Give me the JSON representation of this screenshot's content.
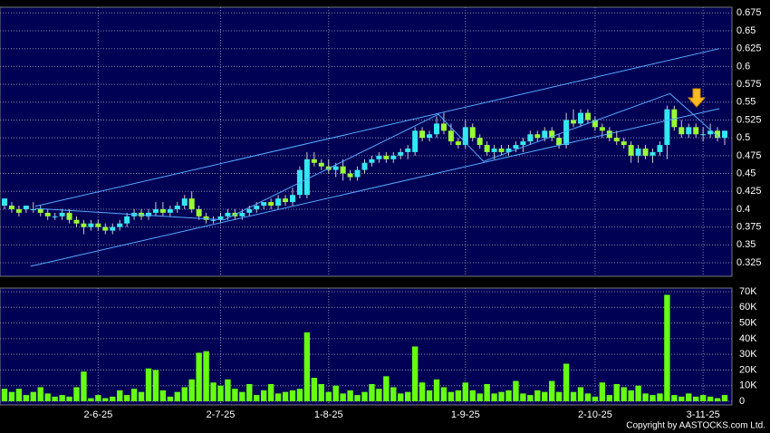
{
  "chart_data": {
    "type": "candlestick",
    "categories": [
      null,
      null,
      null,
      null,
      null,
      null,
      null,
      null,
      null,
      null,
      null,
      null,
      null,
      "2-6-25",
      null,
      null,
      null,
      null,
      null,
      null,
      null,
      null,
      null,
      null,
      null,
      null,
      null,
      null,
      null,
      null,
      "2-7-25",
      null,
      null,
      null,
      null,
      null,
      null,
      null,
      null,
      null,
      null,
      null,
      null,
      null,
      null,
      "1-8-25",
      null,
      null,
      null,
      null,
      null,
      null,
      null,
      null,
      null,
      null,
      null,
      null,
      null,
      null,
      null,
      null,
      null,
      null,
      "1-9-25",
      null,
      null,
      null,
      null,
      null,
      null,
      null,
      null,
      null,
      null,
      null,
      null,
      null,
      null,
      null,
      null,
      null,
      "2-10-25",
      null,
      null,
      null,
      null,
      null,
      null,
      null,
      null,
      null,
      null,
      null,
      null,
      null,
      null,
      "3-11-25",
      null,
      null,
      null
    ],
    "open": [
      0.405,
      0.405,
      0.4,
      0.4,
      0.4,
      0.4,
      0.395,
      0.39,
      0.39,
      0.395,
      0.385,
      0.38,
      0.375,
      0.38,
      0.375,
      0.37,
      0.375,
      0.38,
      0.39,
      0.395,
      0.39,
      0.395,
      0.4,
      0.395,
      0.4,
      0.405,
      0.415,
      0.4,
      0.39,
      0.385,
      0.385,
      0.39,
      0.395,
      0.39,
      0.395,
      0.4,
      0.405,
      0.41,
      0.405,
      0.415,
      0.41,
      0.42,
      0.42,
      0.47,
      0.465,
      0.46,
      0.455,
      0.46,
      0.45,
      0.445,
      0.455,
      0.465,
      0.47,
      0.475,
      0.47,
      0.475,
      0.48,
      0.48,
      0.51,
      0.5,
      0.505,
      0.52,
      0.51,
      0.495,
      0.49,
      0.515,
      0.5,
      0.49,
      0.48,
      0.485,
      0.48,
      0.485,
      0.49,
      0.495,
      0.505,
      0.5,
      0.51,
      0.5,
      0.49,
      0.525,
      0.52,
      0.535,
      0.525,
      0.515,
      0.51,
      0.5,
      0.495,
      0.49,
      0.475,
      0.485,
      0.475,
      0.48,
      0.49,
      0.54,
      0.515,
      0.505,
      0.515,
      0.505,
      0.505,
      0.51,
      0.5
    ],
    "high": [
      0.415,
      0.41,
      0.405,
      0.405,
      0.41,
      0.405,
      0.4,
      0.395,
      0.4,
      0.4,
      0.39,
      0.385,
      0.385,
      0.385,
      0.38,
      0.38,
      0.385,
      0.395,
      0.4,
      0.4,
      0.4,
      0.41,
      0.41,
      0.405,
      0.41,
      0.42,
      0.425,
      0.405,
      0.395,
      0.39,
      0.395,
      0.4,
      0.4,
      0.4,
      0.405,
      0.41,
      0.41,
      0.415,
      0.42,
      0.42,
      0.43,
      0.46,
      0.48,
      0.48,
      0.47,
      0.47,
      0.465,
      0.47,
      0.455,
      0.46,
      0.47,
      0.475,
      0.48,
      0.48,
      0.48,
      0.485,
      0.49,
      0.515,
      0.515,
      0.51,
      0.53,
      0.535,
      0.52,
      0.5,
      0.525,
      0.52,
      0.505,
      0.495,
      0.49,
      0.49,
      0.49,
      0.495,
      0.5,
      0.51,
      0.51,
      0.515,
      0.515,
      0.505,
      0.535,
      0.54,
      0.54,
      0.54,
      0.53,
      0.52,
      0.515,
      0.51,
      0.5,
      0.495,
      0.49,
      0.49,
      0.485,
      0.495,
      0.545,
      0.545,
      0.525,
      0.52,
      0.52,
      0.515,
      0.52,
      0.515,
      0.51
    ],
    "low": [
      0.4,
      0.395,
      0.39,
      0.395,
      0.395,
      0.39,
      0.385,
      0.385,
      0.385,
      0.38,
      0.375,
      0.365,
      0.37,
      0.37,
      0.365,
      0.365,
      0.37,
      0.375,
      0.385,
      0.385,
      0.385,
      0.39,
      0.39,
      0.39,
      0.395,
      0.4,
      0.395,
      0.385,
      0.38,
      0.38,
      0.38,
      0.385,
      0.385,
      0.385,
      0.39,
      0.395,
      0.4,
      0.4,
      0.4,
      0.405,
      0.405,
      0.415,
      0.415,
      0.46,
      0.455,
      0.45,
      0.445,
      0.44,
      0.44,
      0.44,
      0.45,
      0.46,
      0.465,
      0.465,
      0.465,
      0.47,
      0.47,
      0.475,
      0.495,
      0.495,
      0.5,
      0.505,
      0.49,
      0.485,
      0.485,
      0.495,
      0.485,
      0.475,
      0.47,
      0.475,
      0.475,
      0.48,
      0.48,
      0.49,
      0.495,
      0.495,
      0.495,
      0.485,
      0.485,
      0.515,
      0.515,
      0.52,
      0.51,
      0.5,
      0.495,
      0.49,
      0.485,
      0.465,
      0.465,
      0.47,
      0.465,
      0.475,
      0.47,
      0.51,
      0.5,
      0.5,
      0.5,
      0.495,
      0.5,
      0.495,
      0.49
    ],
    "close": [
      0.415,
      0.4,
      0.395,
      0.405,
      0.4,
      0.395,
      0.39,
      0.39,
      0.395,
      0.385,
      0.38,
      0.375,
      0.38,
      0.375,
      0.37,
      0.375,
      0.38,
      0.39,
      0.395,
      0.39,
      0.395,
      0.4,
      0.395,
      0.4,
      0.405,
      0.415,
      0.4,
      0.39,
      0.385,
      0.385,
      0.39,
      0.395,
      0.39,
      0.395,
      0.4,
      0.405,
      0.41,
      0.405,
      0.415,
      0.41,
      0.42,
      0.455,
      0.47,
      0.465,
      0.46,
      0.455,
      0.46,
      0.45,
      0.445,
      0.455,
      0.465,
      0.47,
      0.475,
      0.47,
      0.475,
      0.48,
      0.485,
      0.51,
      0.5,
      0.505,
      0.52,
      0.51,
      0.495,
      0.49,
      0.515,
      0.5,
      0.49,
      0.48,
      0.485,
      0.48,
      0.485,
      0.49,
      0.495,
      0.505,
      0.5,
      0.51,
      0.5,
      0.49,
      0.525,
      0.52,
      0.535,
      0.525,
      0.515,
      0.51,
      0.5,
      0.495,
      0.49,
      0.475,
      0.485,
      0.475,
      0.48,
      0.49,
      0.54,
      0.515,
      0.505,
      0.515,
      0.505,
      0.505,
      0.51,
      0.5,
      0.51
    ],
    "volume": [
      8000,
      6000,
      8000,
      4000,
      6000,
      9000,
      5000,
      3000,
      4000,
      3000,
      9000,
      19000,
      2000,
      4000,
      2000,
      3000,
      7000,
      4000,
      8000,
      6000,
      21000,
      20000,
      7000,
      3000,
      6000,
      9000,
      14000,
      31000,
      32000,
      12000,
      10000,
      14000,
      8000,
      6000,
      11000,
      4000,
      7000,
      11000,
      5000,
      6000,
      7000,
      8000,
      44000,
      15000,
      11000,
      6000,
      10000,
      5000,
      7000,
      4000,
      6000,
      11000,
      8000,
      16000,
      9000,
      5000,
      6000,
      35000,
      12000,
      7000,
      14000,
      9000,
      6000,
      7000,
      12000,
      7000,
      5000,
      11000,
      5000,
      6000,
      7000,
      13000,
      5000,
      4000,
      7000,
      6000,
      13000,
      6000,
      24000,
      6000,
      9000,
      5000,
      3000,
      12000,
      4000,
      11000,
      9000,
      7000,
      10000,
      5000,
      4000,
      5000,
      68000,
      4000,
      3000,
      5000,
      3000,
      4000,
      3000,
      2000,
      4000
    ],
    "up_color": "#33e8f0",
    "down_color": "#99ff33",
    "volume_color": "#66ff11",
    "trendline_color": "#55aaff",
    "ylim": [
      0.306,
      0.683
    ],
    "yticks": [
      0.325,
      0.35,
      0.375,
      0.4,
      0.425,
      0.45,
      0.475,
      0.5,
      0.525,
      0.55,
      0.575,
      0.6,
      0.625,
      0.65,
      0.675
    ],
    "vol_ylim": [
      -2300,
      72300
    ],
    "vol_yticks": [
      0,
      {
        "value": 10000,
        "label": "10K"
      },
      {
        "value": 20000,
        "label": "20K"
      },
      {
        "value": 30000,
        "label": "30K"
      },
      {
        "value": 40000,
        "label": "40K"
      },
      {
        "value": 50000,
        "label": "50K"
      },
      {
        "value": 60000,
        "label": "60K"
      },
      {
        "value": 70000,
        "label": "70K"
      }
    ],
    "trendlines": [
      {
        "x": [
          4.25,
          99.25
        ],
        "y": [
          0.404,
          0.625
        ]
      },
      {
        "x": [
          3.6,
          99.25
        ],
        "y": [
          0.32,
          0.541
        ]
      },
      {
        "x": [
          4.25,
          30.5,
          60.25,
          66.5,
          92.4,
          99.25
        ],
        "y": [
          0.401,
          0.385,
          0.533,
          0.467,
          0.562,
          0.5
        ]
      }
    ],
    "grid": true,
    "copyright": "Copyright by AASTOCKS.com Ltd."
  }
}
